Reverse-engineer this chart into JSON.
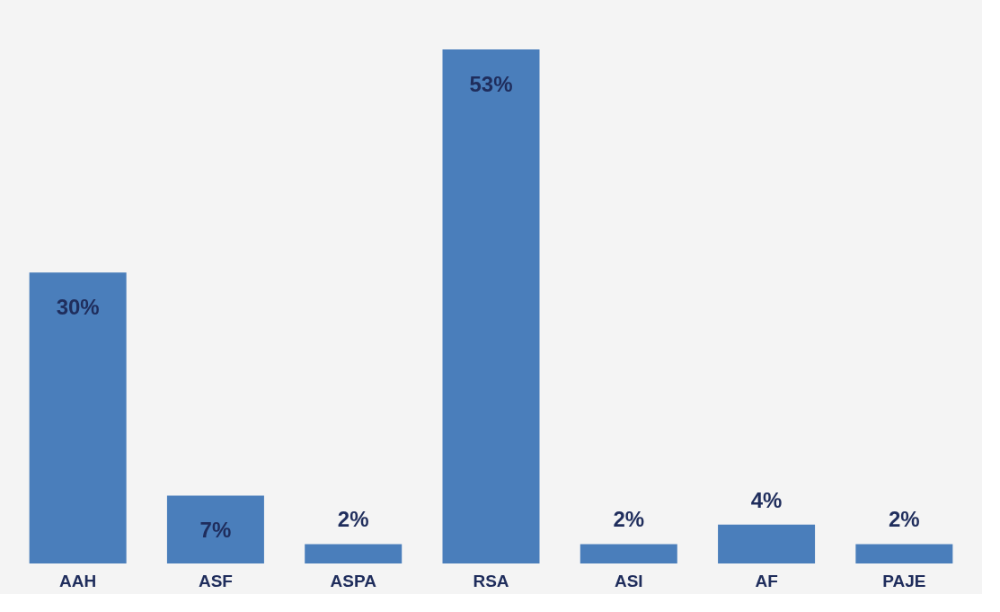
{
  "chart_data": {
    "type": "bar",
    "categories": [
      "AAH",
      "ASF",
      "ASPA",
      "RSA",
      "ASI",
      "AF",
      "PAJE"
    ],
    "values": [
      30,
      7,
      2,
      53,
      2,
      4,
      2
    ],
    "value_labels": [
      "30%",
      "7%",
      "2%",
      "53%",
      "2%",
      "4%",
      "2%"
    ],
    "color": "#4a7ebb",
    "grid": false
  }
}
